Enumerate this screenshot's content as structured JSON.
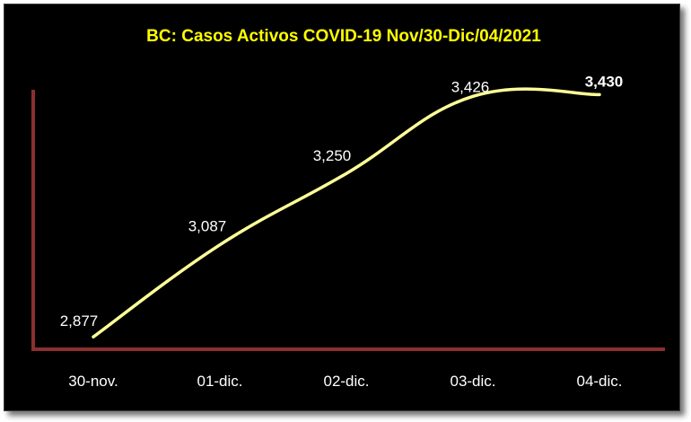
{
  "chart_data": {
    "type": "line",
    "title": "BC: Casos  Activos COVID-19 Nov/30-Dic/04/2021",
    "categories": [
      "30-nov.",
      "01-dic.",
      "02-dic.",
      "03-dic.",
      "04-dic."
    ],
    "series": [
      {
        "values": [
          2877,
          3087,
          3250,
          3426,
          3430
        ],
        "labels": [
          "2,877",
          "3,087",
          "3,250",
          "3,426",
          "3,430"
        ],
        "bold_label_index": 4
      }
    ],
    "xlabel": "",
    "ylabel": "",
    "ylim": [
      2820,
      3480
    ],
    "grid": false,
    "legend": "none",
    "colors": {
      "background": "#000000",
      "line": "#FFFF99",
      "axis": "#8B2F2F",
      "title": "#FFFF00",
      "text": "#FFFFFF"
    }
  }
}
